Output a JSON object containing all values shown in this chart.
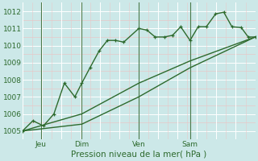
{
  "background_color": "#cce8e8",
  "grid_color": "#ffffff",
  "grid_minor_color": "#e8c8c8",
  "line_color": "#2d6a2d",
  "xlabel": "Pression niveau de la mer( hPa )",
  "ylim": [
    1004.5,
    1012.5
  ],
  "yticks": [
    1005,
    1006,
    1007,
    1008,
    1009,
    1010,
    1011,
    1012
  ],
  "xlim": [
    0.0,
    1.0
  ],
  "day_positions": [
    0.08,
    0.255,
    0.5,
    0.72
  ],
  "day_labels": [
    "Jeu",
    "Dim",
    "Ven",
    "Sam"
  ],
  "line1_x": [
    0.0,
    0.045,
    0.09,
    0.135,
    0.18,
    0.225,
    0.255,
    0.29,
    0.33,
    0.365,
    0.4,
    0.435,
    0.5,
    0.535,
    0.57,
    0.61,
    0.645,
    0.68,
    0.72,
    0.755,
    0.79,
    0.83,
    0.865,
    0.9,
    0.94,
    0.97,
    1.0
  ],
  "line1_y": [
    1005.0,
    1005.6,
    1005.3,
    1006.0,
    1007.8,
    1007.0,
    1007.8,
    1008.7,
    1009.7,
    1010.3,
    1010.3,
    1010.2,
    1011.0,
    1010.9,
    1010.5,
    1010.5,
    1010.6,
    1011.1,
    1010.3,
    1011.1,
    1011.1,
    1011.85,
    1011.95,
    1011.1,
    1011.05,
    1010.5,
    1010.5
  ],
  "line2_x": [
    0.0,
    0.255,
    0.5,
    0.72,
    1.0
  ],
  "line2_y": [
    1005.0,
    1006.0,
    1007.8,
    1009.1,
    1010.5
  ],
  "line3_x": [
    0.0,
    0.255,
    0.5,
    0.72,
    1.0
  ],
  "line3_y": [
    1005.0,
    1005.4,
    1007.0,
    1008.7,
    1010.5
  ],
  "marker": "+",
  "marker_size": 3.5,
  "line_width": 1.0,
  "tick_fontsize": 6.5,
  "xlabel_fontsize": 7.5
}
